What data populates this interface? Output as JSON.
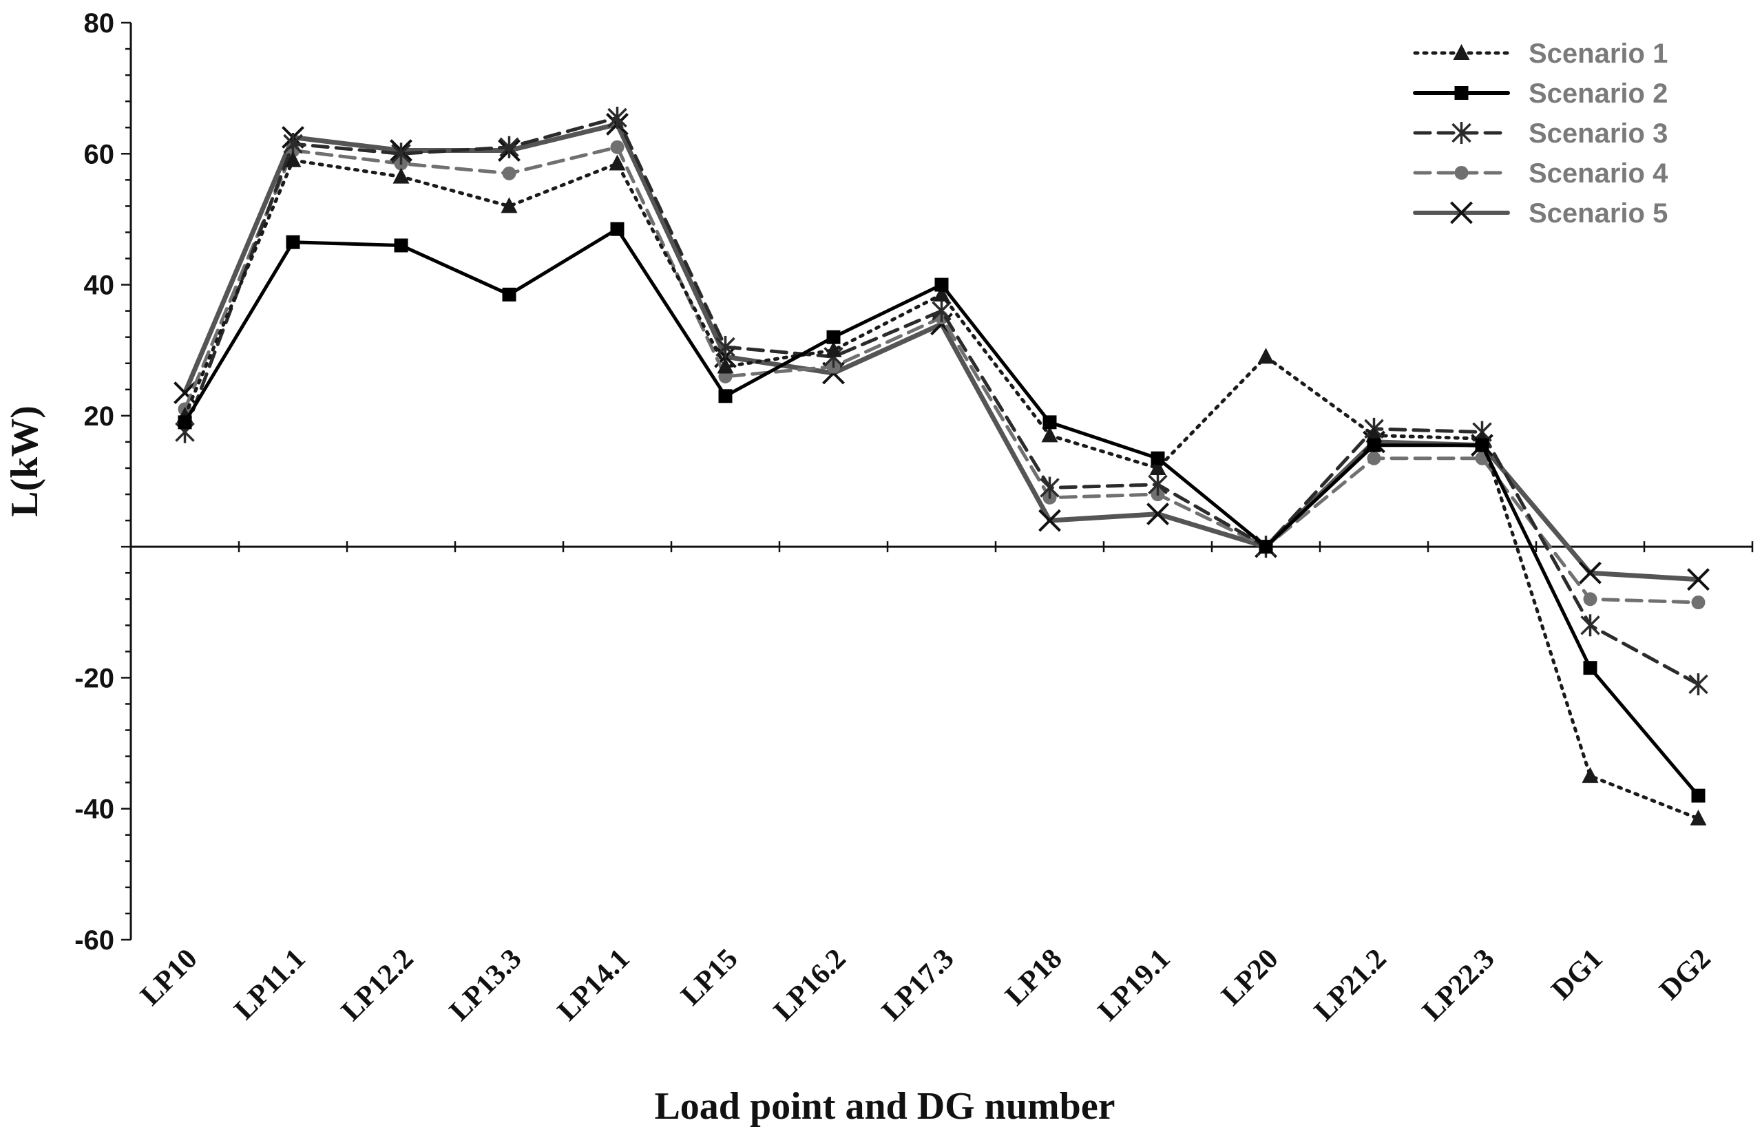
{
  "chart_data": {
    "type": "line",
    "xlabel": "Load point and DG number",
    "ylabel": "L(kW)",
    "ylim": [
      -60,
      80
    ],
    "yticks": [
      -60,
      -40,
      -20,
      20,
      40,
      60,
      80
    ],
    "categories": [
      "LP10",
      "LP11.1",
      "LP12.2",
      "LP13.3",
      "LP14.1",
      "LP15",
      "LP16.2",
      "LP17.3",
      "LP18",
      "LP19.1",
      "LP20",
      "LP21.2",
      "LP22.3",
      "DG1",
      "DG2"
    ],
    "legend_position": "top-right",
    "grid": false,
    "series": [
      {
        "name": "Scenario 1",
        "color": "#1a1a1a",
        "dash": "dotted",
        "marker": "triangle",
        "values": [
          20,
          59,
          56.5,
          52,
          58.5,
          27.5,
          30,
          38.5,
          17,
          12,
          29,
          17,
          16.5,
          -35,
          -41.5
        ]
      },
      {
        "name": "Scenario 2",
        "color": "#000000",
        "dash": "solid",
        "marker": "square",
        "values": [
          19,
          46.5,
          46,
          38.5,
          48.5,
          23,
          32,
          40,
          19,
          13.5,
          0,
          15.5,
          15.5,
          -18.5,
          -38
        ]
      },
      {
        "name": "Scenario 3",
        "color": "#2b2b2b",
        "dash": "dashed",
        "marker": "asterisk",
        "values": [
          17.5,
          61.5,
          60,
          61,
          65.5,
          30.5,
          29,
          36,
          9,
          9.5,
          0,
          18,
          17.5,
          -12,
          -21
        ]
      },
      {
        "name": "Scenario 4",
        "color": "#707070",
        "dash": "dashed",
        "marker": "circle",
        "values": [
          21,
          60.5,
          58.5,
          57,
          61,
          26,
          27.5,
          35,
          7.5,
          8,
          0,
          13.5,
          13.5,
          -8,
          -8.5
        ]
      },
      {
        "name": "Scenario 5",
        "color": "#555555",
        "dash": "solid",
        "marker": "x",
        "values": [
          23.5,
          62.5,
          60.5,
          60.5,
          64.5,
          29,
          26.5,
          34,
          4,
          5,
          0,
          16,
          15.5,
          -4,
          -5
        ]
      }
    ]
  }
}
